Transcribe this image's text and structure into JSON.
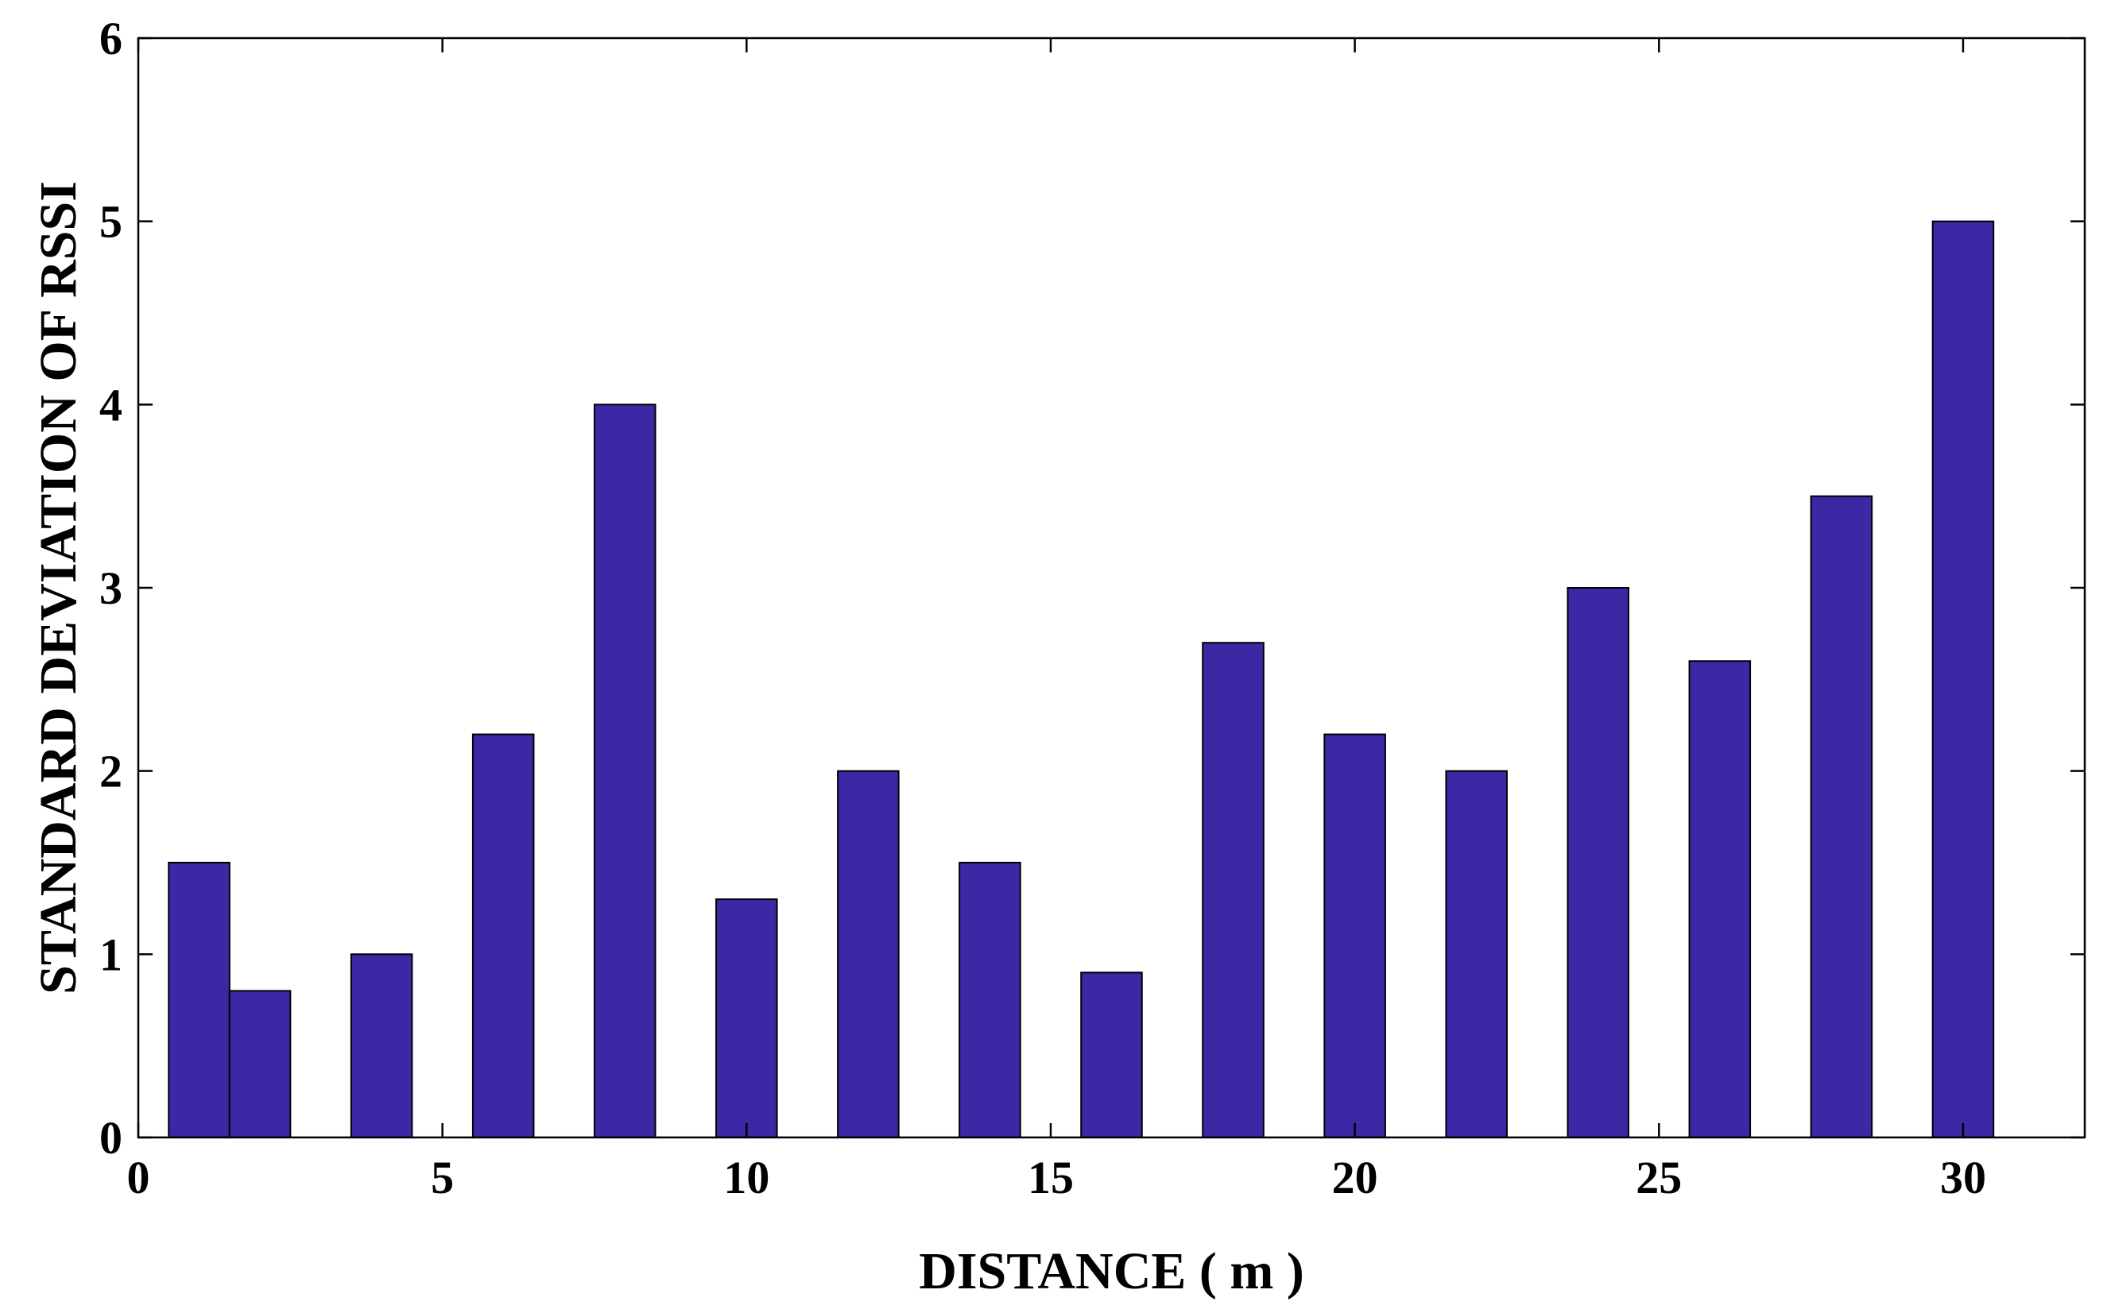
{
  "chart_data": {
    "type": "bar",
    "title": "",
    "xlabel": "DISTANCE ( m )",
    "ylabel": "STANDARD DEVIATION OF RSSI",
    "xlim": [
      0,
      32
    ],
    "ylim": [
      0,
      6
    ],
    "xticks": [
      0,
      5,
      10,
      15,
      20,
      25,
      30
    ],
    "yticks": [
      0,
      1,
      2,
      3,
      4,
      5,
      6
    ],
    "bar_width": 1,
    "grid": false,
    "legend": "none",
    "bar_color": "#3b28a5",
    "x": [
      1,
      2,
      4,
      6,
      8,
      10,
      12,
      14,
      16,
      18,
      20,
      22,
      24,
      26,
      28,
      30
    ],
    "values": [
      1.5,
      0.8,
      1.0,
      2.2,
      4.0,
      1.3,
      2.0,
      1.5,
      0.9,
      2.7,
      2.2,
      2.0,
      3.0,
      2.6,
      3.5,
      5.0
    ]
  }
}
